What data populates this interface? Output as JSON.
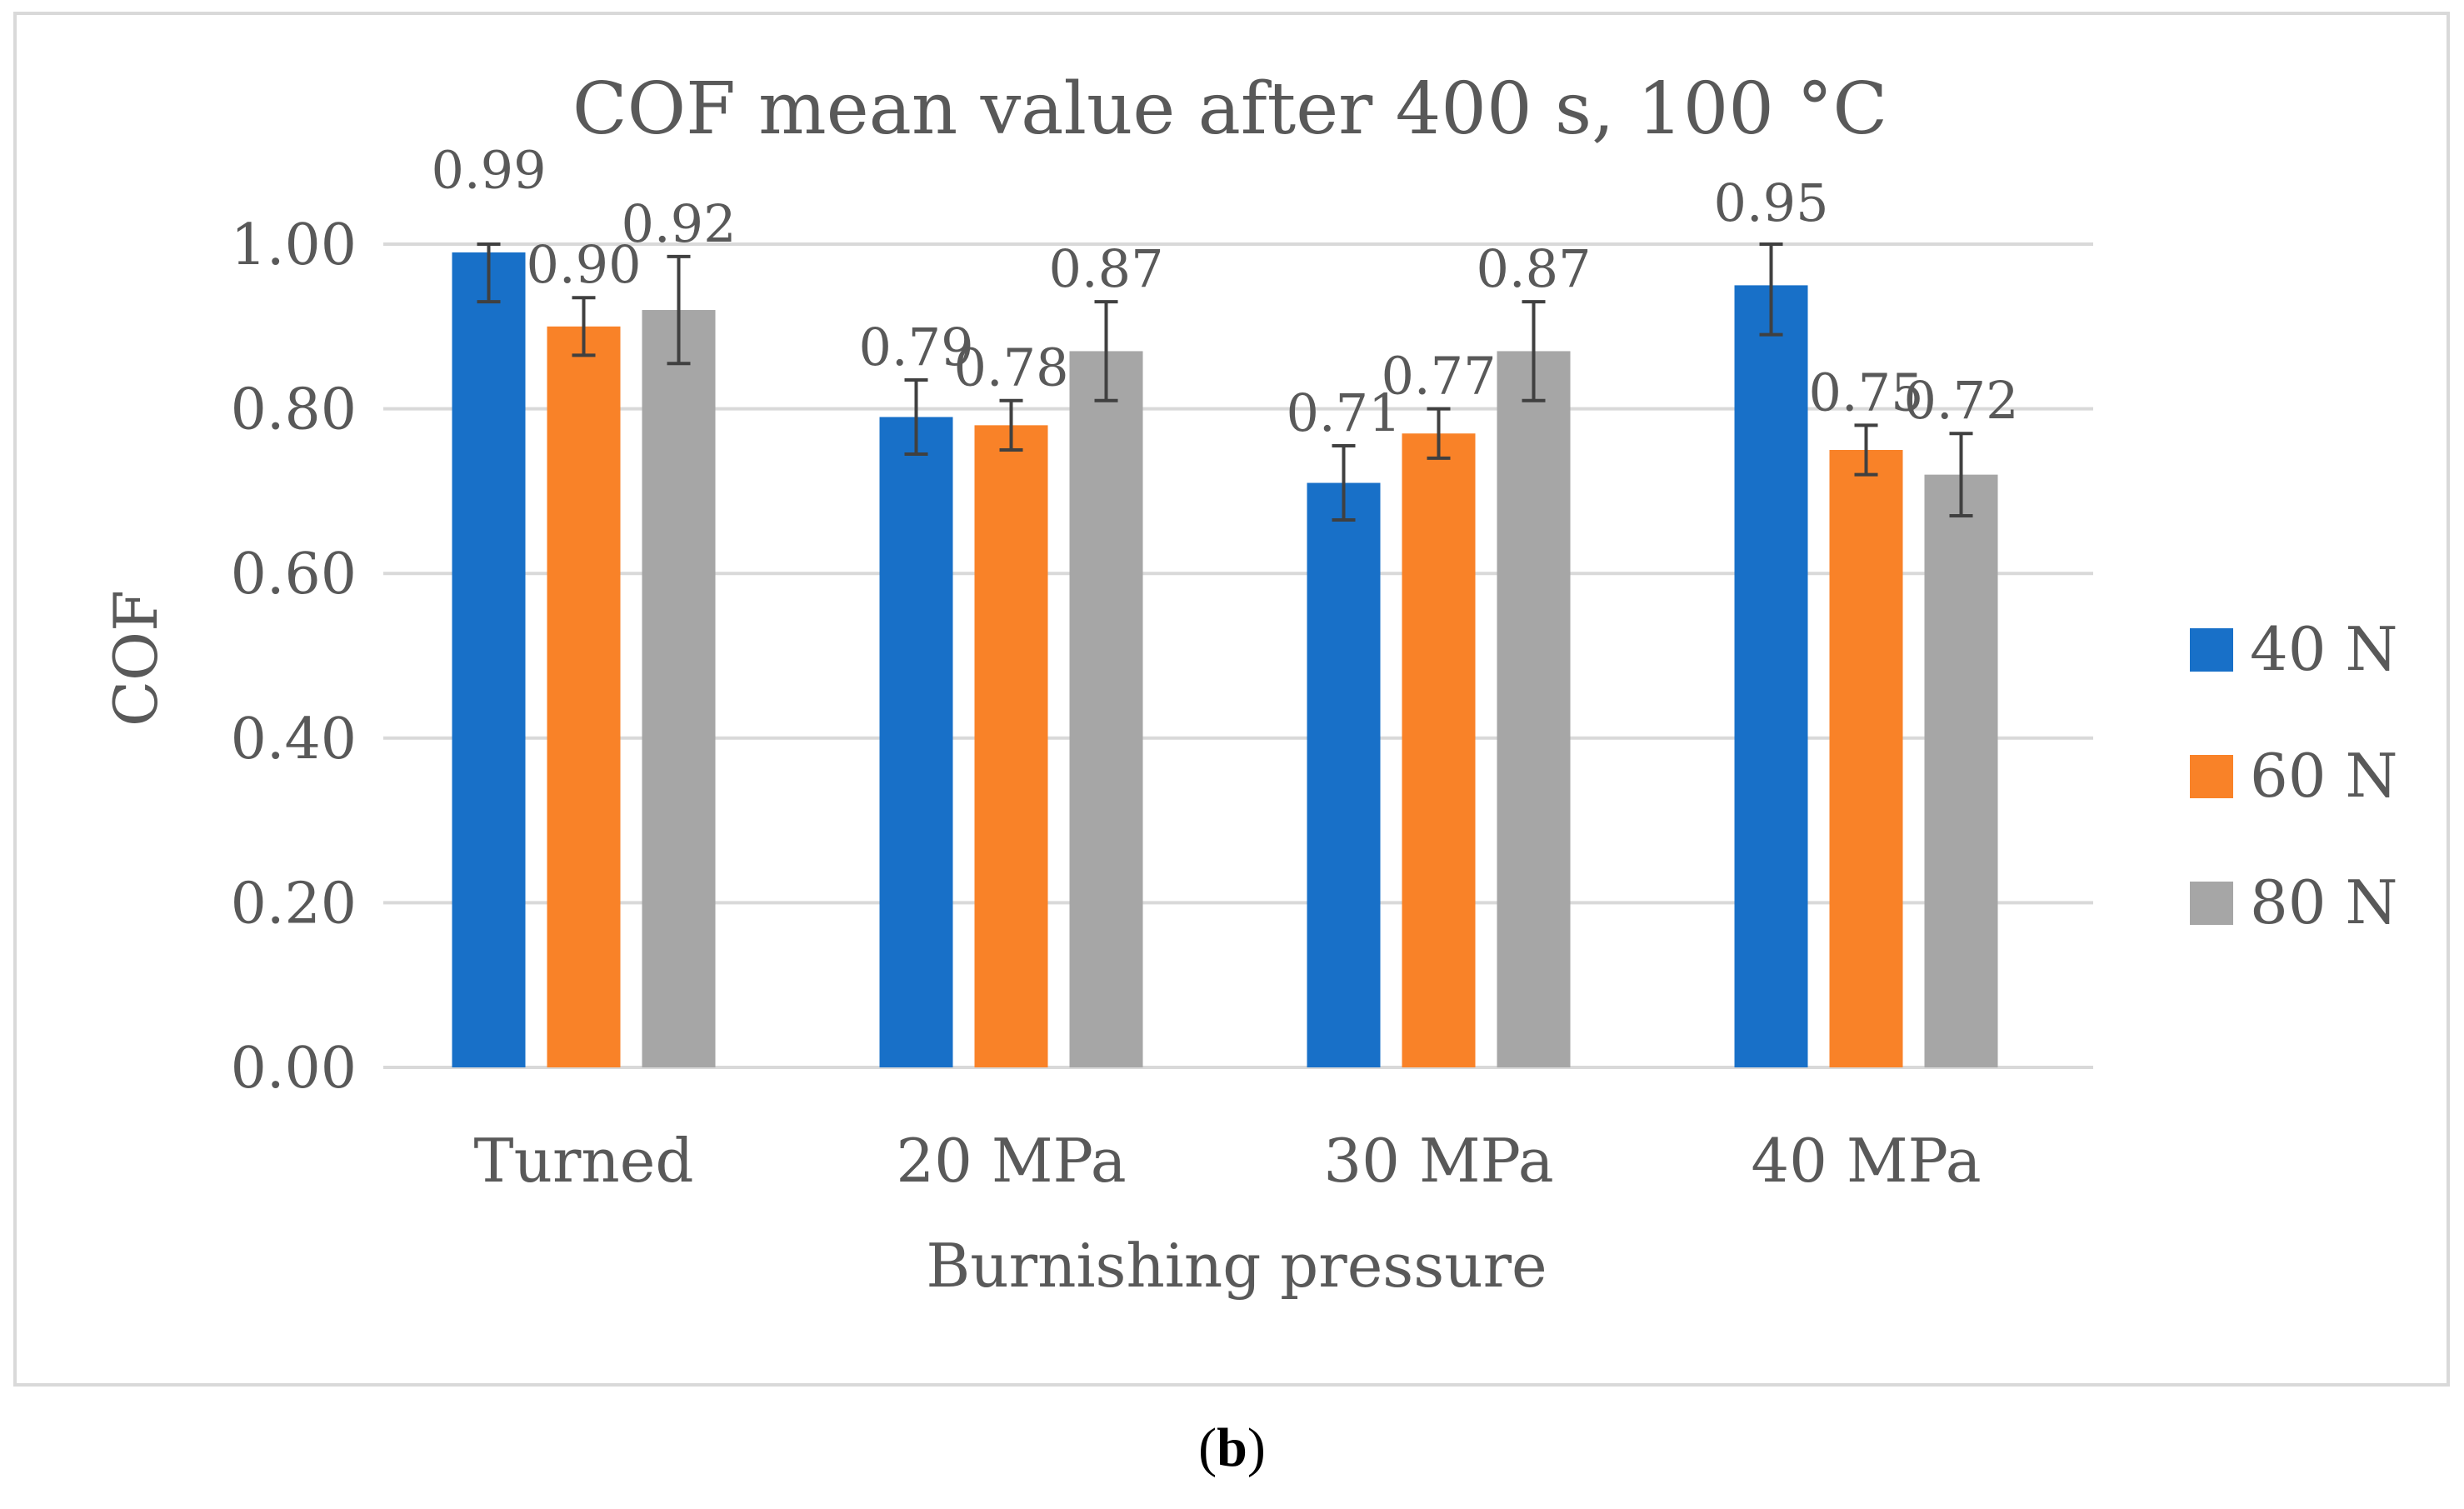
{
  "chart_data": {
    "type": "bar",
    "title": "COF mean value after 400 s, 100 °C",
    "xlabel": "Burnishing pressure",
    "ylabel": "COF",
    "ylim": [
      0,
      1.0
    ],
    "yticks": [
      "0.00",
      "0.20",
      "0.40",
      "0.60",
      "0.80",
      "1.00"
    ],
    "categories": [
      "Turned",
      "20 MPa",
      "30 MPa",
      "40 MPa"
    ],
    "series": [
      {
        "name": "40 N",
        "color": "#1870c8",
        "values": [
          0.99,
          0.79,
          0.71,
          0.95
        ],
        "labels": [
          "0.99",
          "0.79",
          "0.71",
          "0.95"
        ],
        "errors": [
          0.06,
          0.045,
          0.045,
          0.06
        ]
      },
      {
        "name": "60 N",
        "color": "#f98228",
        "values": [
          0.9,
          0.78,
          0.77,
          0.75
        ],
        "labels": [
          "0.90",
          "0.78",
          "0.77",
          "0.75"
        ],
        "errors": [
          0.035,
          0.03,
          0.03,
          0.03
        ]
      },
      {
        "name": "80 N",
        "color": "#a6a6a6",
        "values": [
          0.92,
          0.87,
          0.87,
          0.72
        ],
        "labels": [
          "0.92",
          "0.87",
          "0.87",
          "0.72"
        ],
        "errors": [
          0.065,
          0.06,
          0.06,
          0.05
        ]
      }
    ],
    "grid": true,
    "legend": "right"
  },
  "caption": {
    "open": "(",
    "letter": "b",
    "close": ")"
  }
}
